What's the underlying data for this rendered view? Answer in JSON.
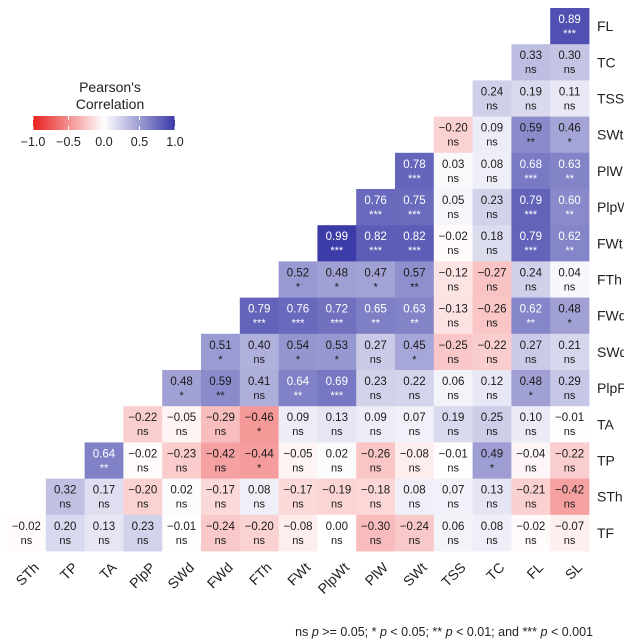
{
  "chart_data": {
    "type": "heatmap",
    "columns": [
      "STh",
      "TP",
      "TA",
      "PlpP",
      "SWd",
      "FWd",
      "FTh",
      "FWt",
      "PlpWt",
      "PlW",
      "SWt",
      "TSS",
      "TC",
      "FL",
      "SL"
    ],
    "rows": [
      {
        "label": "FL",
        "cells": [
          null,
          null,
          null,
          null,
          null,
          null,
          null,
          null,
          null,
          null,
          null,
          null,
          null,
          null,
          {
            "v": 0.89,
            "t": "0.89",
            "s": "***"
          }
        ]
      },
      {
        "label": "TC",
        "cells": [
          null,
          null,
          null,
          null,
          null,
          null,
          null,
          null,
          null,
          null,
          null,
          null,
          null,
          {
            "v": 0.33,
            "t": "0.33",
            "s": "ns"
          },
          {
            "v": 0.3,
            "t": "0.30",
            "s": "ns"
          }
        ]
      },
      {
        "label": "TSS",
        "cells": [
          null,
          null,
          null,
          null,
          null,
          null,
          null,
          null,
          null,
          null,
          null,
          null,
          {
            "v": 0.24,
            "t": "0.24",
            "s": "ns"
          },
          {
            "v": 0.19,
            "t": "0.19",
            "s": "ns"
          },
          {
            "v": 0.11,
            "t": "0.11",
            "s": "ns"
          }
        ]
      },
      {
        "label": "SWt",
        "cells": [
          null,
          null,
          null,
          null,
          null,
          null,
          null,
          null,
          null,
          null,
          null,
          {
            "v": -0.2,
            "t": "-0.20",
            "s": "ns"
          },
          {
            "v": 0.09,
            "t": "0.09",
            "s": "ns"
          },
          {
            "v": 0.59,
            "t": "0.59",
            "s": "**"
          },
          {
            "v": 0.46,
            "t": "0.46",
            "s": "*"
          }
        ]
      },
      {
        "label": "PlW",
        "cells": [
          null,
          null,
          null,
          null,
          null,
          null,
          null,
          null,
          null,
          null,
          {
            "v": 0.78,
            "t": "0.78",
            "s": "***"
          },
          {
            "v": 0.03,
            "t": "0.03",
            "s": "ns"
          },
          {
            "v": 0.08,
            "t": "0.08",
            "s": "ns"
          },
          {
            "v": 0.68,
            "t": "0.68",
            "s": "***"
          },
          {
            "v": 0.63,
            "t": "0.63",
            "s": "**"
          }
        ]
      },
      {
        "label": "PlpWt",
        "cells": [
          null,
          null,
          null,
          null,
          null,
          null,
          null,
          null,
          null,
          {
            "v": 0.76,
            "t": "0.76",
            "s": "***"
          },
          {
            "v": 0.75,
            "t": "0.75",
            "s": "***"
          },
          {
            "v": 0.05,
            "t": "0.05",
            "s": "ns"
          },
          {
            "v": 0.23,
            "t": "0.23",
            "s": "ns"
          },
          {
            "v": 0.79,
            "t": "0.79",
            "s": "***"
          },
          {
            "v": 0.6,
            "t": "0.60",
            "s": "**"
          }
        ]
      },
      {
        "label": "FWt",
        "cells": [
          null,
          null,
          null,
          null,
          null,
          null,
          null,
          null,
          {
            "v": 0.99,
            "t": "0.99",
            "s": "***"
          },
          {
            "v": 0.82,
            "t": "0.82",
            "s": "***"
          },
          {
            "v": 0.82,
            "t": "0.82",
            "s": "***"
          },
          {
            "v": -0.02,
            "t": "-0.02",
            "s": "ns"
          },
          {
            "v": 0.18,
            "t": "0.18",
            "s": "ns"
          },
          {
            "v": 0.79,
            "t": "0.79",
            "s": "***"
          },
          {
            "v": 0.62,
            "t": "0.62",
            "s": "**"
          }
        ]
      },
      {
        "label": "FTh",
        "cells": [
          null,
          null,
          null,
          null,
          null,
          null,
          null,
          {
            "v": 0.52,
            "t": "0.52",
            "s": "*"
          },
          {
            "v": 0.48,
            "t": "0.48",
            "s": "*"
          },
          {
            "v": 0.47,
            "t": "0.47",
            "s": "*"
          },
          {
            "v": 0.57,
            "t": "0.57",
            "s": "**"
          },
          {
            "v": -0.12,
            "t": "-0.12",
            "s": "ns"
          },
          {
            "v": -0.27,
            "t": "-0.27",
            "s": "ns"
          },
          {
            "v": 0.24,
            "t": "0.24",
            "s": "ns"
          },
          {
            "v": 0.04,
            "t": "0.04",
            "s": "ns"
          }
        ]
      },
      {
        "label": "FWd",
        "cells": [
          null,
          null,
          null,
          null,
          null,
          null,
          {
            "v": 0.79,
            "t": "0.79",
            "s": "***"
          },
          {
            "v": 0.76,
            "t": "0.76",
            "s": "***"
          },
          {
            "v": 0.72,
            "t": "0.72",
            "s": "***"
          },
          {
            "v": 0.65,
            "t": "0.65",
            "s": "**"
          },
          {
            "v": 0.63,
            "t": "0.63",
            "s": "**"
          },
          {
            "v": -0.13,
            "t": "-0.13",
            "s": "ns"
          },
          {
            "v": -0.26,
            "t": "-0.26",
            "s": "ns"
          },
          {
            "v": 0.62,
            "t": "0.62",
            "s": "**"
          },
          {
            "v": 0.48,
            "t": "0.48",
            "s": "*"
          }
        ]
      },
      {
        "label": "SWd",
        "cells": [
          null,
          null,
          null,
          null,
          null,
          {
            "v": 0.51,
            "t": "0.51",
            "s": "*"
          },
          {
            "v": 0.4,
            "t": "0.40",
            "s": "ns"
          },
          {
            "v": 0.54,
            "t": "0.54",
            "s": "*"
          },
          {
            "v": 0.53,
            "t": "0.53",
            "s": "*"
          },
          {
            "v": 0.27,
            "t": "0.27",
            "s": "ns"
          },
          {
            "v": 0.45,
            "t": "0.45",
            "s": "*"
          },
          {
            "v": -0.25,
            "t": "-0.25",
            "s": "ns"
          },
          {
            "v": -0.22,
            "t": "-0.22",
            "s": "ns"
          },
          {
            "v": 0.27,
            "t": "0.27",
            "s": "ns"
          },
          {
            "v": 0.21,
            "t": "0.21",
            "s": "ns"
          }
        ]
      },
      {
        "label": "PlpP",
        "cells": [
          null,
          null,
          null,
          null,
          {
            "v": 0.48,
            "t": "0.48",
            "s": "*"
          },
          {
            "v": 0.59,
            "t": "0.59",
            "s": "**"
          },
          {
            "v": 0.41,
            "t": "0.41",
            "s": "ns"
          },
          {
            "v": 0.64,
            "t": "0.64",
            "s": "**"
          },
          {
            "v": 0.69,
            "t": "0.69",
            "s": "***"
          },
          {
            "v": 0.23,
            "t": "0.23",
            "s": "ns"
          },
          {
            "v": 0.22,
            "t": "0.22",
            "s": "ns"
          },
          {
            "v": 0.06,
            "t": "0.06",
            "s": "ns"
          },
          {
            "v": 0.12,
            "t": "0.12",
            "s": "ns"
          },
          {
            "v": 0.48,
            "t": "0.48",
            "s": "*"
          },
          {
            "v": 0.29,
            "t": "0.29",
            "s": "ns"
          }
        ]
      },
      {
        "label": "TA",
        "cells": [
          null,
          null,
          null,
          {
            "v": -0.22,
            "t": "-0.22",
            "s": "ns"
          },
          {
            "v": -0.05,
            "t": "-0.05",
            "s": "ns"
          },
          {
            "v": -0.29,
            "t": "-0.29",
            "s": "ns"
          },
          {
            "v": -0.46,
            "t": "-0.46",
            "s": "*"
          },
          {
            "v": 0.09,
            "t": "0.09",
            "s": "ns"
          },
          {
            "v": 0.13,
            "t": "0.13",
            "s": "ns"
          },
          {
            "v": 0.09,
            "t": "0.09",
            "s": "ns"
          },
          {
            "v": 0.07,
            "t": "0.07",
            "s": "ns"
          },
          {
            "v": 0.19,
            "t": "0.19",
            "s": "ns"
          },
          {
            "v": 0.25,
            "t": "0.25",
            "s": "ns"
          },
          {
            "v": 0.1,
            "t": "0.10",
            "s": "ns"
          },
          {
            "v": -0.01,
            "t": "-0.01",
            "s": "ns"
          }
        ]
      },
      {
        "label": "TP",
        "cells": [
          null,
          null,
          {
            "v": 0.64,
            "t": "0.64",
            "s": "**"
          },
          {
            "v": -0.02,
            "t": "-0.02",
            "s": "ns"
          },
          {
            "v": -0.23,
            "t": "-0.23",
            "s": "ns"
          },
          {
            "v": -0.42,
            "t": "-0.42",
            "s": "ns"
          },
          {
            "v": -0.44,
            "t": "-0.44",
            "s": "*"
          },
          {
            "v": -0.05,
            "t": "-0.05",
            "s": "ns"
          },
          {
            "v": 0.02,
            "t": "0.02",
            "s": "ns"
          },
          {
            "v": -0.26,
            "t": "-0.26",
            "s": "ns"
          },
          {
            "v": -0.08,
            "t": "-0.08",
            "s": "ns"
          },
          {
            "v": -0.01,
            "t": "-0.01",
            "s": "ns"
          },
          {
            "v": 0.49,
            "t": "0.49",
            "s": "*"
          },
          {
            "v": -0.04,
            "t": "-0.04",
            "s": "ns"
          },
          {
            "v": -0.22,
            "t": "-0.22",
            "s": "ns"
          }
        ]
      },
      {
        "label": "STh",
        "cells": [
          null,
          {
            "v": 0.32,
            "t": "0.32",
            "s": "ns"
          },
          {
            "v": 0.17,
            "t": "0.17",
            "s": "ns"
          },
          {
            "v": -0.2,
            "t": "-0.20",
            "s": "ns"
          },
          {
            "v": 0.02,
            "t": "0.02",
            "s": "ns"
          },
          {
            "v": -0.17,
            "t": "-0.17",
            "s": "ns"
          },
          {
            "v": 0.08,
            "t": "0.08",
            "s": "ns"
          },
          {
            "v": -0.17,
            "t": "-0.17",
            "s": "ns"
          },
          {
            "v": -0.19,
            "t": "-0.19",
            "s": "ns"
          },
          {
            "v": -0.18,
            "t": "-0.18",
            "s": "ns"
          },
          {
            "v": 0.08,
            "t": "0.08",
            "s": "ns"
          },
          {
            "v": 0.07,
            "t": "0.07",
            "s": "ns"
          },
          {
            "v": 0.13,
            "t": "0.13",
            "s": "ns"
          },
          {
            "v": -0.21,
            "t": "-0.21",
            "s": "ns"
          },
          {
            "v": -0.42,
            "t": "-0.42",
            "s": "ns"
          }
        ]
      },
      {
        "label": "TF",
        "cells": [
          {
            "v": -0.02,
            "t": "-0.02",
            "s": "ns"
          },
          {
            "v": 0.2,
            "t": "0.20",
            "s": "ns"
          },
          {
            "v": 0.13,
            "t": "0.13",
            "s": "ns"
          },
          {
            "v": 0.23,
            "t": "0.23",
            "s": "ns"
          },
          {
            "v": -0.01,
            "t": "-0.01",
            "s": "ns"
          },
          {
            "v": -0.24,
            "t": "-0.24",
            "s": "ns"
          },
          {
            "v": -0.2,
            "t": "-0.20",
            "s": "ns"
          },
          {
            "v": -0.08,
            "t": "-0.08",
            "s": "ns"
          },
          {
            "v": 0.0,
            "t": "0.00",
            "s": "ns"
          },
          {
            "v": -0.3,
            "t": "-0.30",
            "s": "ns"
          },
          {
            "v": -0.24,
            "t": "-0.24",
            "s": "ns"
          },
          {
            "v": 0.06,
            "t": "0.06",
            "s": "ns"
          },
          {
            "v": 0.08,
            "t": "0.08",
            "s": "ns"
          },
          {
            "v": -0.02,
            "t": "-0.02",
            "s": "ns"
          },
          {
            "v": -0.07,
            "t": "-0.07",
            "s": "ns"
          }
        ]
      }
    ],
    "legend": {
      "title_line1": "Pearson's",
      "title_line2": "Correlation",
      "ticks": [
        "−1.0",
        "−0.5",
        "0.0",
        "0.5",
        "1.0"
      ],
      "tick_values": [
        -1.0,
        -0.5,
        0.0,
        0.5,
        1.0
      ],
      "range": [
        -1.0,
        1.0
      ],
      "placement": "top-left"
    },
    "colors": {
      "negative": "#e8201f",
      "zero": "#ffffff",
      "positive": "#3a3aa8",
      "text_light": "#ffffff",
      "text_dark": "#1a1a1a"
    },
    "footnote": "ns p >= 0.05; * p < 0.05; ** p < 0.01; and *** p < 0.001",
    "footnote_parts": [
      {
        "text": "ns ",
        "italic": false
      },
      {
        "text": "p",
        "italic": true
      },
      {
        "text": " >= 0.05; * ",
        "italic": false
      },
      {
        "text": "p",
        "italic": true
      },
      {
        "text": " < 0.05; ** ",
        "italic": false
      },
      {
        "text": "p",
        "italic": true
      },
      {
        "text": " < 0.01; and *** ",
        "italic": false
      },
      {
        "text": "p",
        "italic": true
      },
      {
        "text": " < 0.001",
        "italic": false
      }
    ]
  }
}
